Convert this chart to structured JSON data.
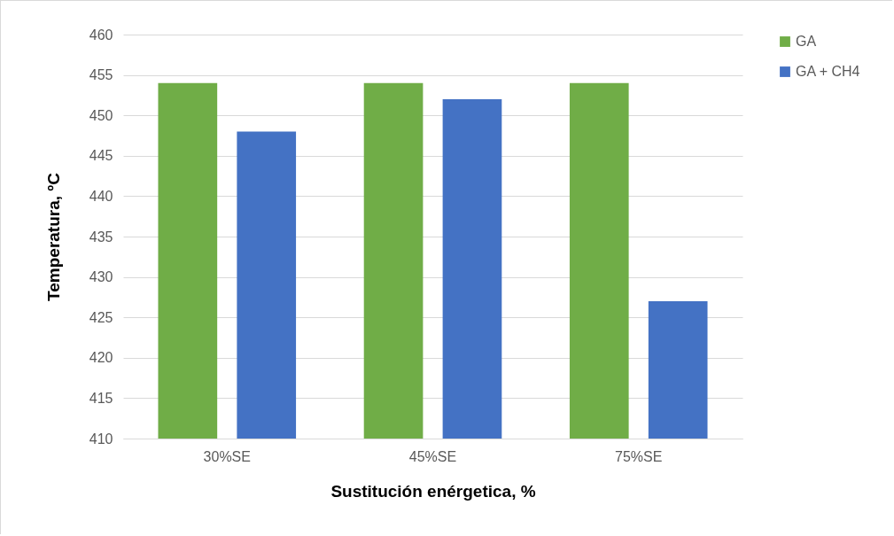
{
  "chart_data": {
    "type": "bar",
    "xlabel": "Sustitución enérgetica, %",
    "ylabel": "Temperatura, ºC",
    "categories": [
      "30%SE",
      "45%SE",
      "75%SE"
    ],
    "series": [
      {
        "name": "GA",
        "color": "#70ad47",
        "values": [
          454,
          454,
          454
        ]
      },
      {
        "name": "GA + CH4",
        "color": "#4472c4",
        "values": [
          448,
          452,
          427
        ]
      }
    ],
    "ylim": [
      410,
      460
    ],
    "yticks": [
      410,
      415,
      420,
      425,
      430,
      435,
      440,
      445,
      450,
      455,
      460
    ],
    "grid": "y",
    "legend": "right"
  }
}
